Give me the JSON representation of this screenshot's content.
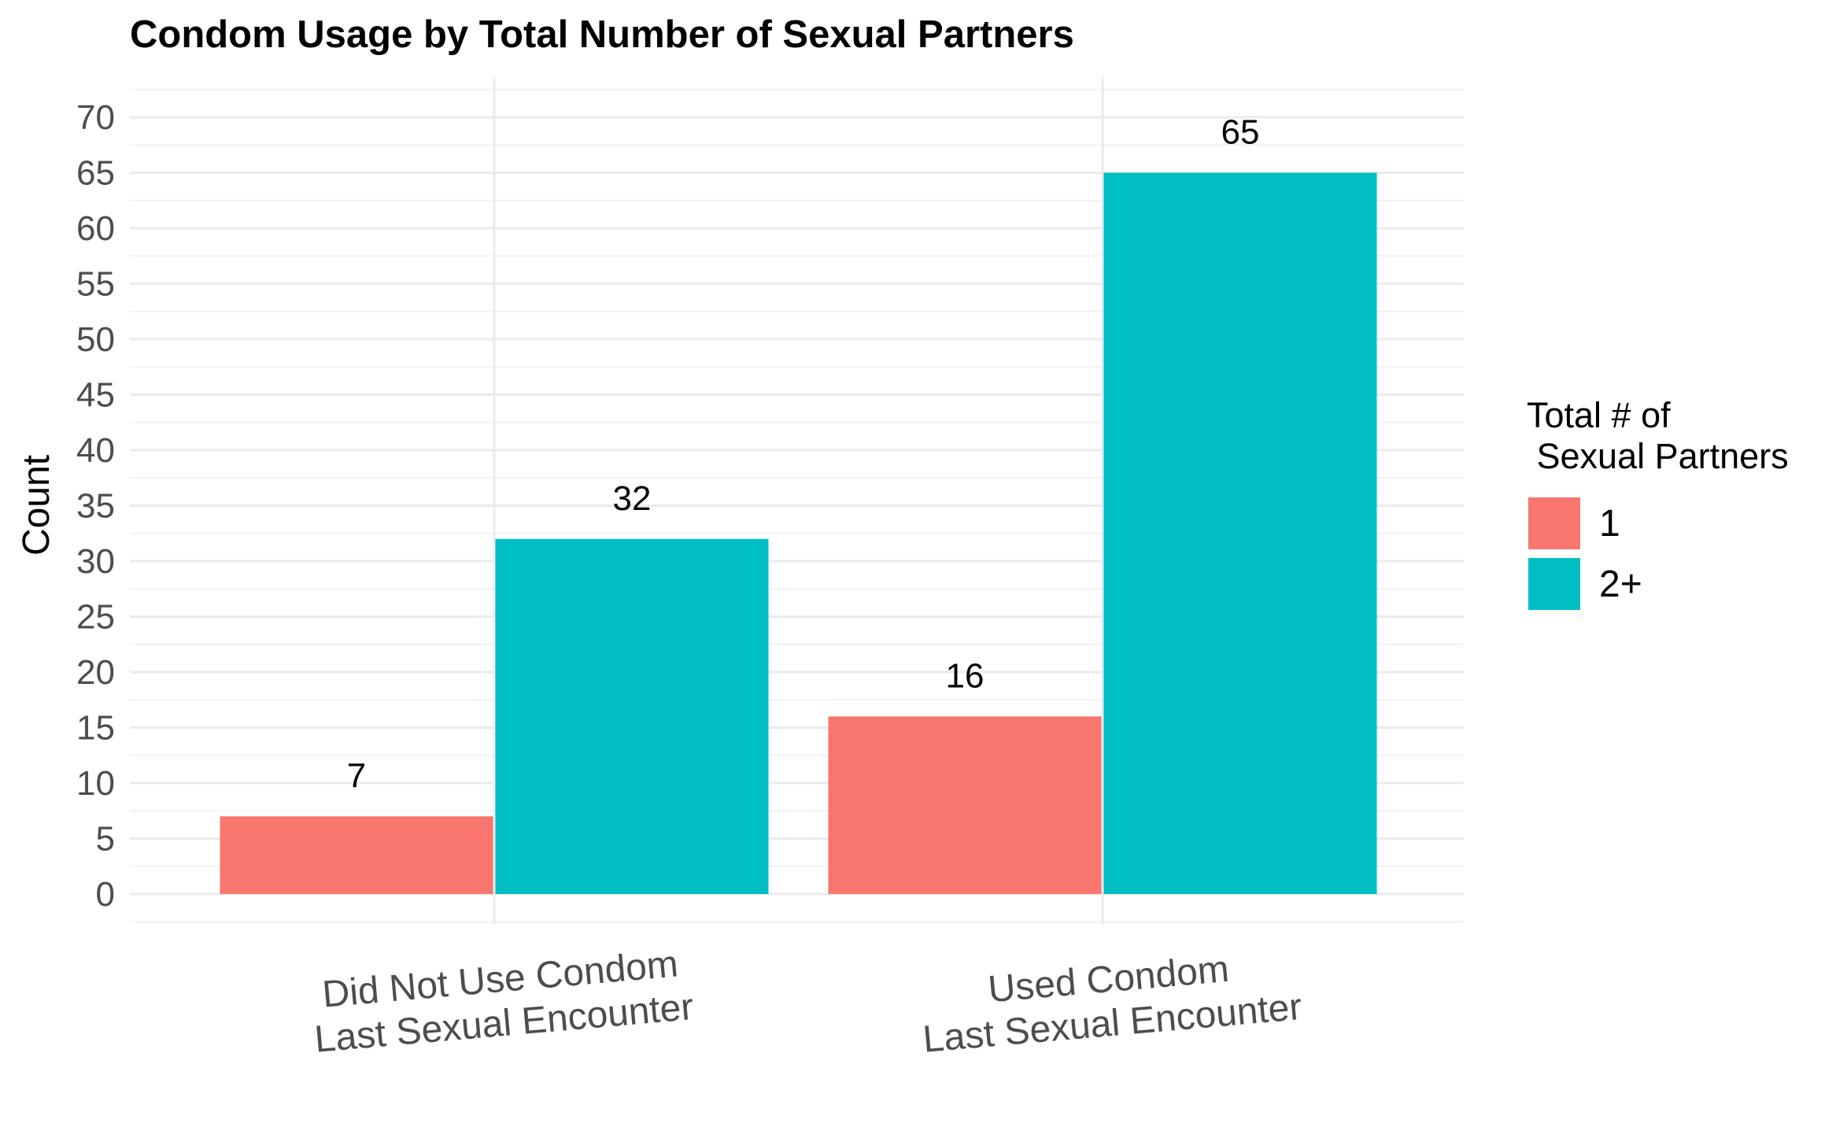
{
  "chart_data": {
    "type": "bar",
    "title": "Condom Usage by Total Number of Sexual Partners",
    "xlabel": "",
    "ylabel": "Count",
    "ylim": [
      0,
      70
    ],
    "yticks": [
      0,
      5,
      10,
      15,
      20,
      25,
      30,
      35,
      40,
      45,
      50,
      55,
      60,
      65,
      70
    ],
    "categories": [
      [
        "Did Not Use Condom",
        "Last Sexual Encounter"
      ],
      [
        "Used Condom",
        "Last Sexual Encounter"
      ]
    ],
    "series": [
      {
        "name": "1",
        "color": "#F8766D",
        "values": [
          7,
          16
        ]
      },
      {
        "name": "2+",
        "color": "#00BFC4",
        "values": [
          32,
          65
        ]
      }
    ],
    "legend": {
      "title_lines": [
        "Total # of",
        " Sexual Partners"
      ],
      "position": "right"
    },
    "grid": true
  }
}
